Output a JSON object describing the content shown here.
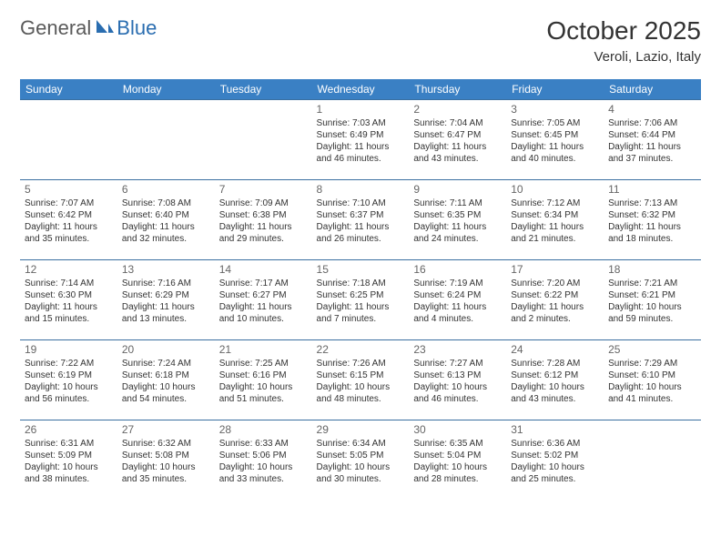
{
  "logo": {
    "part1": "General",
    "part2": "Blue"
  },
  "title": "October 2025",
  "location": "Veroli, Lazio, Italy",
  "header_bg": "#3a80c4",
  "border_color": "#3a6fa0",
  "weekdays": [
    "Sunday",
    "Monday",
    "Tuesday",
    "Wednesday",
    "Thursday",
    "Friday",
    "Saturday"
  ],
  "weeks": [
    [
      null,
      null,
      null,
      {
        "n": "1",
        "sr": "Sunrise: 7:03 AM",
        "ss": "Sunset: 6:49 PM",
        "d1": "Daylight: 11 hours",
        "d2": "and 46 minutes."
      },
      {
        "n": "2",
        "sr": "Sunrise: 7:04 AM",
        "ss": "Sunset: 6:47 PM",
        "d1": "Daylight: 11 hours",
        "d2": "and 43 minutes."
      },
      {
        "n": "3",
        "sr": "Sunrise: 7:05 AM",
        "ss": "Sunset: 6:45 PM",
        "d1": "Daylight: 11 hours",
        "d2": "and 40 minutes."
      },
      {
        "n": "4",
        "sr": "Sunrise: 7:06 AM",
        "ss": "Sunset: 6:44 PM",
        "d1": "Daylight: 11 hours",
        "d2": "and 37 minutes."
      }
    ],
    [
      {
        "n": "5",
        "sr": "Sunrise: 7:07 AM",
        "ss": "Sunset: 6:42 PM",
        "d1": "Daylight: 11 hours",
        "d2": "and 35 minutes."
      },
      {
        "n": "6",
        "sr": "Sunrise: 7:08 AM",
        "ss": "Sunset: 6:40 PM",
        "d1": "Daylight: 11 hours",
        "d2": "and 32 minutes."
      },
      {
        "n": "7",
        "sr": "Sunrise: 7:09 AM",
        "ss": "Sunset: 6:38 PM",
        "d1": "Daylight: 11 hours",
        "d2": "and 29 minutes."
      },
      {
        "n": "8",
        "sr": "Sunrise: 7:10 AM",
        "ss": "Sunset: 6:37 PM",
        "d1": "Daylight: 11 hours",
        "d2": "and 26 minutes."
      },
      {
        "n": "9",
        "sr": "Sunrise: 7:11 AM",
        "ss": "Sunset: 6:35 PM",
        "d1": "Daylight: 11 hours",
        "d2": "and 24 minutes."
      },
      {
        "n": "10",
        "sr": "Sunrise: 7:12 AM",
        "ss": "Sunset: 6:34 PM",
        "d1": "Daylight: 11 hours",
        "d2": "and 21 minutes."
      },
      {
        "n": "11",
        "sr": "Sunrise: 7:13 AM",
        "ss": "Sunset: 6:32 PM",
        "d1": "Daylight: 11 hours",
        "d2": "and 18 minutes."
      }
    ],
    [
      {
        "n": "12",
        "sr": "Sunrise: 7:14 AM",
        "ss": "Sunset: 6:30 PM",
        "d1": "Daylight: 11 hours",
        "d2": "and 15 minutes."
      },
      {
        "n": "13",
        "sr": "Sunrise: 7:16 AM",
        "ss": "Sunset: 6:29 PM",
        "d1": "Daylight: 11 hours",
        "d2": "and 13 minutes."
      },
      {
        "n": "14",
        "sr": "Sunrise: 7:17 AM",
        "ss": "Sunset: 6:27 PM",
        "d1": "Daylight: 11 hours",
        "d2": "and 10 minutes."
      },
      {
        "n": "15",
        "sr": "Sunrise: 7:18 AM",
        "ss": "Sunset: 6:25 PM",
        "d1": "Daylight: 11 hours",
        "d2": "and 7 minutes."
      },
      {
        "n": "16",
        "sr": "Sunrise: 7:19 AM",
        "ss": "Sunset: 6:24 PM",
        "d1": "Daylight: 11 hours",
        "d2": "and 4 minutes."
      },
      {
        "n": "17",
        "sr": "Sunrise: 7:20 AM",
        "ss": "Sunset: 6:22 PM",
        "d1": "Daylight: 11 hours",
        "d2": "and 2 minutes."
      },
      {
        "n": "18",
        "sr": "Sunrise: 7:21 AM",
        "ss": "Sunset: 6:21 PM",
        "d1": "Daylight: 10 hours",
        "d2": "and 59 minutes."
      }
    ],
    [
      {
        "n": "19",
        "sr": "Sunrise: 7:22 AM",
        "ss": "Sunset: 6:19 PM",
        "d1": "Daylight: 10 hours",
        "d2": "and 56 minutes."
      },
      {
        "n": "20",
        "sr": "Sunrise: 7:24 AM",
        "ss": "Sunset: 6:18 PM",
        "d1": "Daylight: 10 hours",
        "d2": "and 54 minutes."
      },
      {
        "n": "21",
        "sr": "Sunrise: 7:25 AM",
        "ss": "Sunset: 6:16 PM",
        "d1": "Daylight: 10 hours",
        "d2": "and 51 minutes."
      },
      {
        "n": "22",
        "sr": "Sunrise: 7:26 AM",
        "ss": "Sunset: 6:15 PM",
        "d1": "Daylight: 10 hours",
        "d2": "and 48 minutes."
      },
      {
        "n": "23",
        "sr": "Sunrise: 7:27 AM",
        "ss": "Sunset: 6:13 PM",
        "d1": "Daylight: 10 hours",
        "d2": "and 46 minutes."
      },
      {
        "n": "24",
        "sr": "Sunrise: 7:28 AM",
        "ss": "Sunset: 6:12 PM",
        "d1": "Daylight: 10 hours",
        "d2": "and 43 minutes."
      },
      {
        "n": "25",
        "sr": "Sunrise: 7:29 AM",
        "ss": "Sunset: 6:10 PM",
        "d1": "Daylight: 10 hours",
        "d2": "and 41 minutes."
      }
    ],
    [
      {
        "n": "26",
        "sr": "Sunrise: 6:31 AM",
        "ss": "Sunset: 5:09 PM",
        "d1": "Daylight: 10 hours",
        "d2": "and 38 minutes."
      },
      {
        "n": "27",
        "sr": "Sunrise: 6:32 AM",
        "ss": "Sunset: 5:08 PM",
        "d1": "Daylight: 10 hours",
        "d2": "and 35 minutes."
      },
      {
        "n": "28",
        "sr": "Sunrise: 6:33 AM",
        "ss": "Sunset: 5:06 PM",
        "d1": "Daylight: 10 hours",
        "d2": "and 33 minutes."
      },
      {
        "n": "29",
        "sr": "Sunrise: 6:34 AM",
        "ss": "Sunset: 5:05 PM",
        "d1": "Daylight: 10 hours",
        "d2": "and 30 minutes."
      },
      {
        "n": "30",
        "sr": "Sunrise: 6:35 AM",
        "ss": "Sunset: 5:04 PM",
        "d1": "Daylight: 10 hours",
        "d2": "and 28 minutes."
      },
      {
        "n": "31",
        "sr": "Sunrise: 6:36 AM",
        "ss": "Sunset: 5:02 PM",
        "d1": "Daylight: 10 hours",
        "d2": "and 25 minutes."
      },
      null
    ]
  ]
}
